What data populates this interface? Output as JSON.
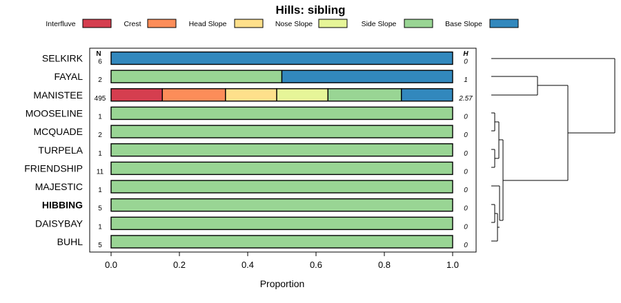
{
  "chart_data": {
    "type": "bar",
    "orientation": "horizontal",
    "stacked": true,
    "title": "Hills: sibling",
    "xlabel": "Proportion",
    "ylabel": "",
    "xlim": [
      0,
      1
    ],
    "x_ticks": [
      "0.0",
      "0.2",
      "0.4",
      "0.6",
      "0.8",
      "1.0"
    ],
    "legend": [
      {
        "name": "Interfluve",
        "color": "#D53E4F"
      },
      {
        "name": "Crest",
        "color": "#FC8D59"
      },
      {
        "name": "Head Slope",
        "color": "#FEE08B"
      },
      {
        "name": "Nose Slope",
        "color": "#E6F598"
      },
      {
        "name": "Side Slope",
        "color": "#99D594"
      },
      {
        "name": "Base Slope",
        "color": "#3288BD"
      }
    ],
    "n_header": "N",
    "h_header": "H",
    "categories": [
      "SELKIRK",
      "FAYAL",
      "MANISTEE",
      "MOOSELINE",
      "MCQUADE",
      "TURPELA",
      "FRIENDSHIP",
      "MAJESTIC",
      "HIBBING",
      "DAISYBAY",
      "BUHL"
    ],
    "highlighted": "HIBBING",
    "n": [
      "6",
      "2",
      "495",
      "1",
      "2",
      "1",
      "11",
      "1",
      "5",
      "1",
      "5"
    ],
    "h": [
      "0",
      "1",
      "2.57",
      "0",
      "0",
      "0",
      "0",
      "0",
      "0",
      "0",
      "0"
    ],
    "series": [
      {
        "name": "Interfluve",
        "values": [
          0,
          0,
          0.15,
          0,
          0,
          0,
          0,
          0,
          0,
          0,
          0
        ]
      },
      {
        "name": "Crest",
        "values": [
          0,
          0,
          0.185,
          0,
          0,
          0,
          0,
          0,
          0,
          0,
          0
        ]
      },
      {
        "name": "Head Slope",
        "values": [
          0,
          0,
          0.15,
          0,
          0,
          0,
          0,
          0,
          0,
          0,
          0
        ]
      },
      {
        "name": "Nose Slope",
        "values": [
          0,
          0,
          0.15,
          0,
          0,
          0,
          0,
          0,
          0,
          0,
          0
        ]
      },
      {
        "name": "Side Slope",
        "values": [
          0,
          0.5,
          0.215,
          1,
          1,
          1,
          1,
          1,
          1,
          1,
          1
        ]
      },
      {
        "name": "Base Slope",
        "values": [
          1,
          0.5,
          0.15,
          0,
          0,
          0,
          0,
          0,
          0,
          0,
          0
        ]
      }
    ],
    "dendrogram": true
  }
}
